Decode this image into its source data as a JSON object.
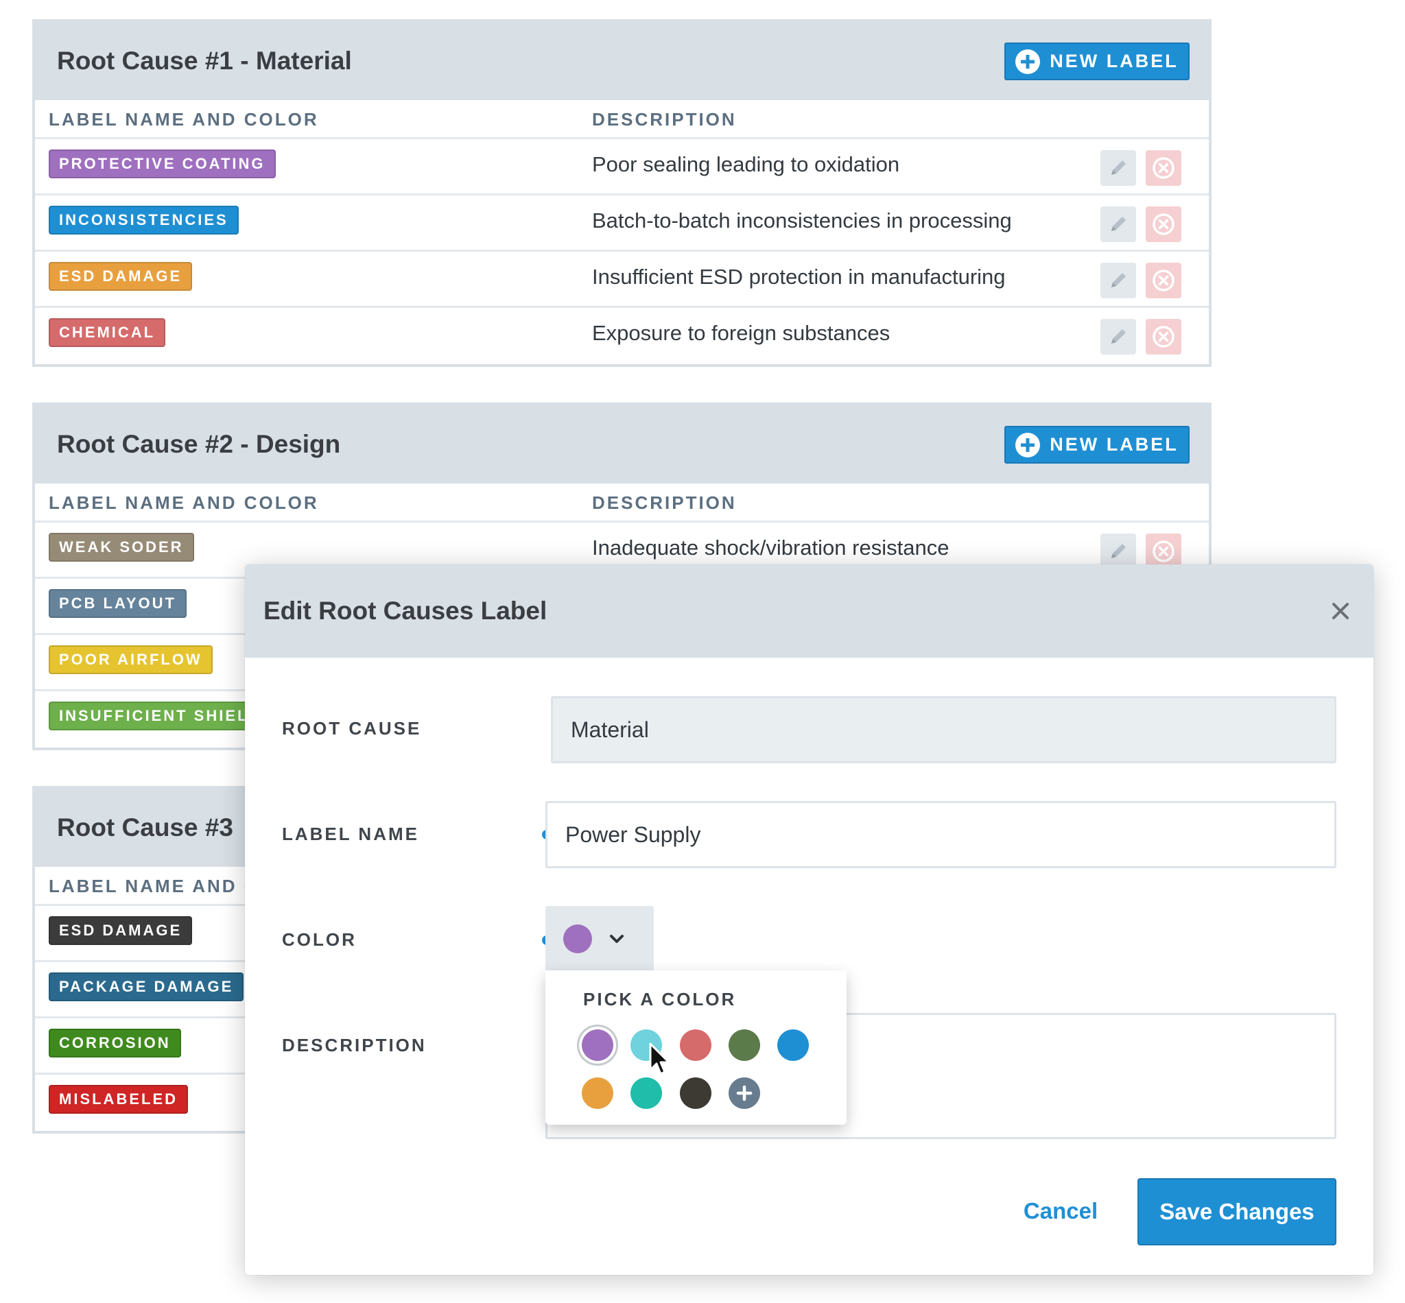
{
  "new_label_text": "NEW LABEL",
  "columns": {
    "label": "LABEL NAME AND COLOR",
    "description": "DESCRIPTION"
  },
  "panels": [
    {
      "title": "Root Cause #1 - Material",
      "rows": [
        {
          "label": "PROTECTIVE COATING",
          "color": "#9f70bf",
          "description": "Poor sealing leading to oxidation"
        },
        {
          "label": "INCONSISTENCIES",
          "color": "#1f8fd4",
          "description": "Batch-to-batch inconsistencies in processing"
        },
        {
          "label": "ESD DAMAGE",
          "color": "#e8a03f",
          "description": "Insufficient ESD protection in manufacturing"
        },
        {
          "label": "CHEMICAL",
          "color": "#d66b6b",
          "description": "Exposure to foreign substances"
        }
      ]
    },
    {
      "title": "Root Cause #2 - Design",
      "rows": [
        {
          "label": "WEAK SODER",
          "color": "#968b77",
          "description": "Inadequate shock/vibration resistance"
        },
        {
          "label": "PCB LAYOUT",
          "color": "#65839b",
          "description": ""
        },
        {
          "label": "POOR AIRFLOW",
          "color": "#e6c430",
          "description": ""
        },
        {
          "label": "INSUFFICIENT SHIEL",
          "color": "#6db04c",
          "description": ""
        }
      ]
    },
    {
      "title": "Root Cause #3",
      "rows": [
        {
          "label": "ESD DAMAGE",
          "color": "#3b3b3b",
          "description": ""
        },
        {
          "label": "PACKAGE DAMAGE",
          "color": "#2b6a8e",
          "description": ""
        },
        {
          "label": "CORROSION",
          "color": "#3f8a1e",
          "description": ""
        },
        {
          "label": "MISLABELED",
          "color": "#cf2525",
          "description": ""
        }
      ]
    }
  ],
  "modal": {
    "title": "Edit Root Causes Label",
    "fields": {
      "root_cause_label": "ROOT CAUSE",
      "root_cause_value": "Material",
      "label_name_label": "LABEL NAME",
      "label_name_value": "Power Supply",
      "color_label": "COLOR",
      "description_label": "DESCRIPTION"
    },
    "selected_color": "#9f70bf",
    "picker": {
      "title": "PICK A COLOR",
      "colors": [
        "#9f70bf",
        "#6fd2dc",
        "#d66b6b",
        "#5b7b4a",
        "#1f8fd4",
        "#e8a03f",
        "#1fbdaa",
        "#3d3a33"
      ]
    },
    "cancel": "Cancel",
    "save": "Save Changes"
  }
}
